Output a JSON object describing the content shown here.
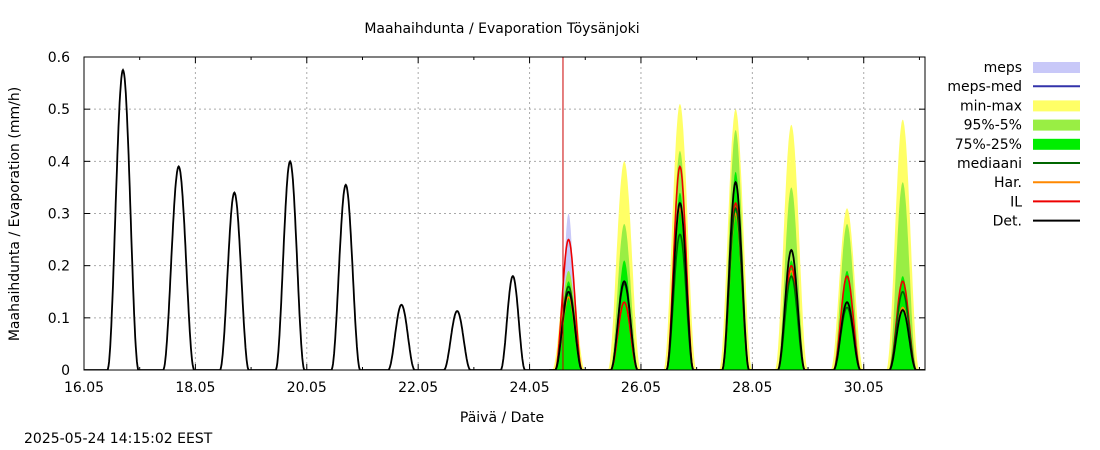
{
  "chart_data": {
    "type": "area",
    "title": "Maahaihdunta / Evaporation  Töysänjoki",
    "xlabel": "Päivä / Date",
    "ylabel": "Maahaihdunta / Evaporation (mm/h)",
    "timestamp": "2025-05-24 14:15:02 EEST",
    "x_range_days": [
      16.0,
      31.1
    ],
    "ylim": [
      0,
      0.6
    ],
    "y_ticks": [
      0,
      0.1,
      0.2,
      0.3,
      0.4,
      0.5,
      0.6
    ],
    "y_tick_labels": [
      "0",
      "0.1",
      "0.2",
      "0.3",
      "0.4",
      "0.5",
      "0.6"
    ],
    "x_ticks": [
      16,
      18,
      20,
      22,
      24,
      26,
      28,
      30
    ],
    "x_tick_labels": [
      "16.05",
      "18.05",
      "20.05",
      "22.05",
      "24.05",
      "26.05",
      "28.05",
      "30.05"
    ],
    "grid": true,
    "legend_position": "right",
    "forecast_start_day": 24.6,
    "colors": {
      "meps": "#c8c8f8",
      "meps_med": "#3333aa",
      "min_max": "#ffff66",
      "p95_5": "#99ee44",
      "p75_25": "#00ee00",
      "mediaani": "#006600",
      "har": "#ff8800",
      "il": "#ee0000",
      "det": "#000000",
      "now_line": "#cc0000",
      "grid": "#aaaaaa"
    },
    "legend": [
      {
        "key": "meps",
        "label": "meps",
        "style": "band"
      },
      {
        "key": "meps_med",
        "label": "meps-med",
        "style": "line"
      },
      {
        "key": "min_max",
        "label": "min-max",
        "style": "band"
      },
      {
        "key": "p95_5",
        "label": "95%-5%",
        "style": "band"
      },
      {
        "key": "p75_25",
        "label": "75%-25%",
        "style": "band"
      },
      {
        "key": "mediaani",
        "label": "mediaani",
        "style": "line"
      },
      {
        "key": "har",
        "label": "Har.",
        "style": "line"
      },
      {
        "key": "il",
        "label": "IL",
        "style": "line"
      },
      {
        "key": "det",
        "label": "Det.",
        "style": "line"
      }
    ],
    "observed_peaks": [
      {
        "day": 16.7,
        "value": 0.575,
        "width": 0.28
      },
      {
        "day": 17.7,
        "value": 0.39,
        "width": 0.28
      },
      {
        "day": 18.7,
        "value": 0.34,
        "width": 0.26
      },
      {
        "day": 19.7,
        "value": 0.4,
        "width": 0.26
      },
      {
        "day": 20.7,
        "value": 0.355,
        "width": 0.26
      },
      {
        "day": 21.7,
        "value": 0.125,
        "width": 0.24
      },
      {
        "day": 22.7,
        "value": 0.113,
        "width": 0.24
      },
      {
        "day": 23.7,
        "value": 0.18,
        "width": 0.22
      }
    ],
    "forecast_days": [
      {
        "day": 24.7,
        "minmax": 0.22,
        "p95": 0.19,
        "p75": 0.17,
        "med": 0.16,
        "il": 0.25,
        "har": 0.14,
        "det": 0.15,
        "meps": 0.3
      },
      {
        "day": 25.7,
        "minmax": 0.4,
        "p95": 0.28,
        "p75": 0.21,
        "med": 0.165,
        "il": 0.13,
        "har": 0.13,
        "det": 0.17
      },
      {
        "day": 26.7,
        "minmax": 0.51,
        "p95": 0.42,
        "p75": 0.34,
        "med": 0.26,
        "il": 0.39,
        "har": 0.31,
        "det": 0.32
      },
      {
        "day": 27.7,
        "minmax": 0.5,
        "p95": 0.46,
        "p75": 0.38,
        "med": 0.31,
        "il": 0.32,
        "har": 0.3,
        "det": 0.36
      },
      {
        "day": 28.7,
        "minmax": 0.47,
        "p95": 0.35,
        "p75": 0.21,
        "med": 0.18,
        "il": 0.2,
        "har": 0.19,
        "det": 0.23
      },
      {
        "day": 29.7,
        "minmax": 0.31,
        "p95": 0.28,
        "p75": 0.19,
        "med": 0.12,
        "il": 0.18,
        "har": 0.13,
        "det": 0.13
      },
      {
        "day": 30.7,
        "minmax": 0.48,
        "p95": 0.36,
        "p75": 0.18,
        "med": 0.15,
        "il": 0.17,
        "har": 0.12,
        "det": 0.115
      }
    ]
  }
}
